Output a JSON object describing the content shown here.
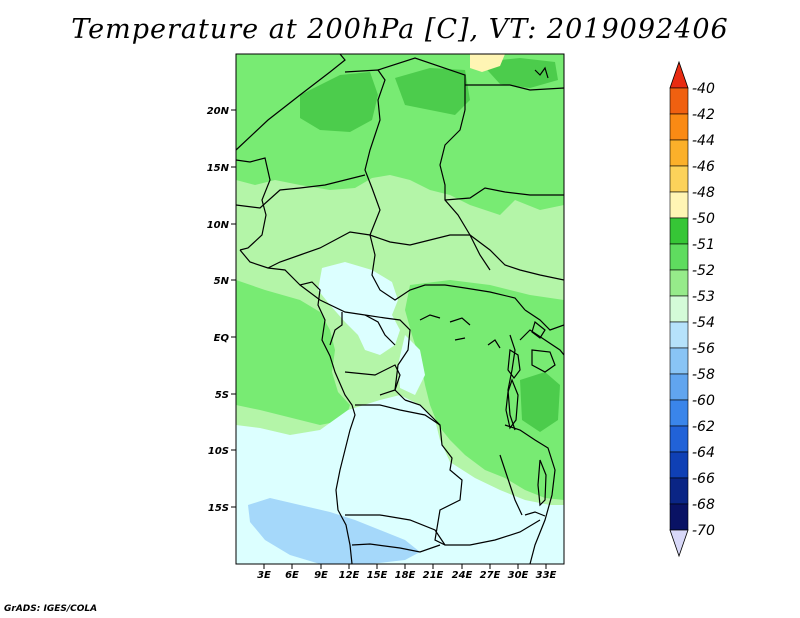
{
  "title": "Temperature at 200hPa [C], VT: 2019092406",
  "credit": "GrADS: IGES/COLA",
  "map": {
    "lat_labels": [
      "20N",
      "15N",
      "10N",
      "5N",
      "EQ",
      "5S",
      "10S",
      "15S"
    ],
    "lon_labels": [
      "3E",
      "6E",
      "9E",
      "12E",
      "15E",
      "18E",
      "21E",
      "24E",
      "27E",
      "30E",
      "33E"
    ],
    "colors": {
      "ocean_light": "#dcffff",
      "cyan_deep": "#a5d8fa",
      "green_pale": "#b4f5a8",
      "green_mid": "#78eb73",
      "green_dark": "#4ccc4c",
      "yellow_pale": "#fff5b4",
      "border": "#000000"
    }
  },
  "colorbar": {
    "labels": [
      "-40",
      "-42",
      "-44",
      "-46",
      "-48",
      "-50",
      "-51",
      "-52",
      "-53",
      "-54",
      "-56",
      "-58",
      "-60",
      "-62",
      "-64",
      "-66",
      "-68",
      "-70"
    ],
    "colors": [
      "#e82b12",
      "#f06010",
      "#fa8a14",
      "#fbb02a",
      "#fcd25a",
      "#fff5b4",
      "#36c636",
      "#5fdc5f",
      "#96eb8a",
      "#d4fbd8",
      "#b6e2fb",
      "#89c4f5",
      "#61a5ef",
      "#3a85ea",
      "#2162d8",
      "#0f40b5",
      "#0a2585",
      "#091264",
      "#d8d8f8"
    ]
  }
}
